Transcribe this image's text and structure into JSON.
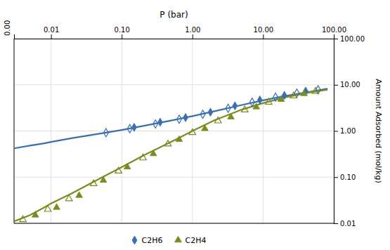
{
  "chart_data": {
    "type": "scatter",
    "x_label": "P (bar)",
    "y_label": "Amount Adsorbed (mol/kg)",
    "log": true,
    "grid": true,
    "legend": "bottom",
    "xlim": [
      0.003,
      100
    ],
    "ylim": [
      0.01,
      100
    ],
    "xticks": [
      0.01,
      {
        "value": 0.1,
        "label": "0.10"
      },
      {
        "value": 1.0,
        "label": "1.00"
      },
      {
        "value": 10.0,
        "label": "10.00"
      },
      {
        "value": 100.0,
        "label": "100.00"
      }
    ],
    "yticks": [
      0.01,
      {
        "value": 0.1,
        "label": "0.10"
      },
      {
        "value": 1.0,
        "label": "1.00"
      },
      {
        "value": 10.0,
        "label": "10.00"
      },
      {
        "value": 100.0,
        "label": "100.00"
      }
    ],
    "annotations": [
      {
        "text": "0.00"
      }
    ],
    "series": [
      {
        "type": "line",
        "color": "#3a6faf",
        "x": [
          0.003,
          0.005,
          0.008,
          0.01,
          0.02,
          0.05,
          0.1,
          0.2,
          0.5,
          1.0,
          2.0,
          5.0,
          10.0,
          20.0,
          50.0,
          80.0
        ],
        "values": [
          0.42,
          0.48,
          0.54,
          0.58,
          0.7,
          0.88,
          1.05,
          1.28,
          1.68,
          2.1,
          2.65,
          3.65,
          4.6,
          5.7,
          7.2,
          8.2
        ]
      },
      {
        "type": "line",
        "color": "#7a8c20",
        "x": [
          0.003,
          0.005,
          0.008,
          0.01,
          0.02,
          0.05,
          0.1,
          0.2,
          0.5,
          1.0,
          2.0,
          5.0,
          10.0,
          20.0,
          50.0,
          80.0
        ],
        "values": [
          0.011,
          0.015,
          0.022,
          0.027,
          0.045,
          0.095,
          0.165,
          0.29,
          0.58,
          1.0,
          1.68,
          2.9,
          4.0,
          5.3,
          7.0,
          7.8
        ]
      },
      {
        "name": "C2H6",
        "type": "scatter",
        "marker": "diamond",
        "color": "#3a6faf",
        "x": [
          0.15,
          0.35,
          0.8,
          1.8,
          4.0,
          9.0,
          20.0,
          40.0
        ],
        "values": [
          1.2,
          1.55,
          1.95,
          2.55,
          3.5,
          4.7,
          5.9,
          7.3
        ]
      },
      {
        "type": "scatter",
        "marker": "diamond-open",
        "color": "#3a6faf",
        "x": [
          0.06,
          0.13,
          0.3,
          0.65,
          1.4,
          3.2,
          7.0,
          15.0,
          30.0,
          60.0
        ],
        "values": [
          0.92,
          1.12,
          1.42,
          1.8,
          2.3,
          3.1,
          4.2,
          5.4,
          6.6,
          7.8
        ]
      },
      {
        "name": "C2H4",
        "type": "scatter",
        "marker": "triangle",
        "color": "#7a8c20",
        "x": [
          0.006,
          0.012,
          0.025,
          0.055,
          0.12,
          0.28,
          0.65,
          1.5,
          3.5,
          8.0,
          18.0,
          38.0
        ],
        "values": [
          0.015,
          0.022,
          0.04,
          0.085,
          0.165,
          0.32,
          0.65,
          1.12,
          2.0,
          3.3,
          4.8,
          6.4
        ]
      },
      {
        "type": "scatter",
        "marker": "triangle-open",
        "color": "#7a8c20",
        "x": [
          0.004,
          0.009,
          0.018,
          0.04,
          0.09,
          0.2,
          0.45,
          1.0,
          2.3,
          5.5,
          12.0,
          27.0,
          55.0
        ],
        "values": [
          0.012,
          0.02,
          0.034,
          0.072,
          0.135,
          0.26,
          0.52,
          0.92,
          1.65,
          2.85,
          4.2,
          5.75,
          7.2
        ]
      }
    ]
  }
}
